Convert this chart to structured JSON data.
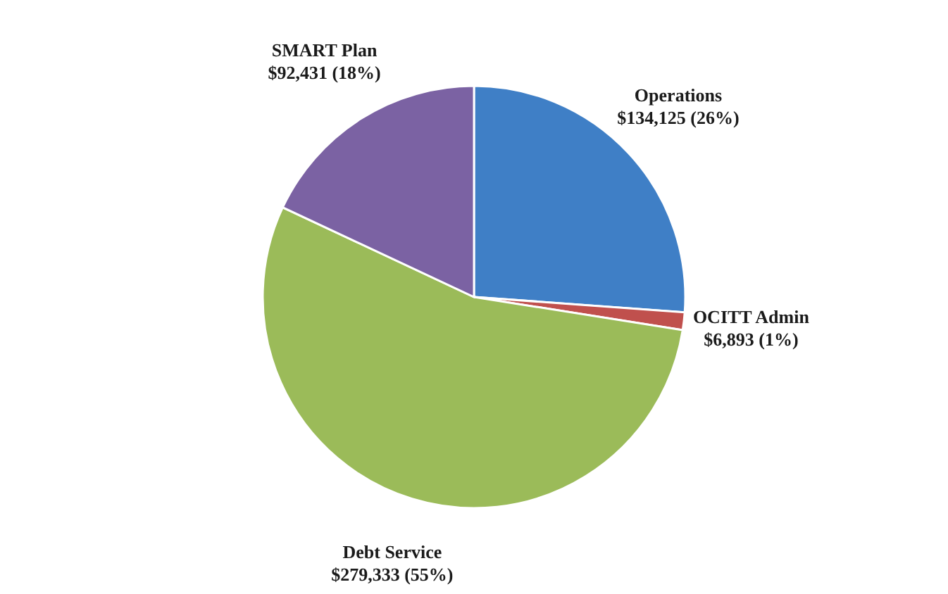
{
  "chart_data": {
    "type": "pie",
    "categories": [
      "Operations",
      "OCITT Admin",
      "Debt Service",
      "SMART Plan"
    ],
    "values": [
      134125,
      6893,
      279333,
      92431
    ],
    "value_labels": [
      "$134,125 (26%)",
      "$6,893 (1%)",
      "$279,333 (55%)",
      "$92,431 (18%)"
    ],
    "colors": [
      "#3f7fc6",
      "#c0504d",
      "#9bbb59",
      "#7b62a3"
    ],
    "legend": false
  }
}
